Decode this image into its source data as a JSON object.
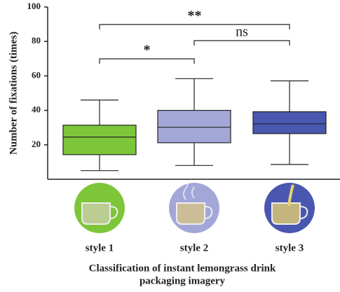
{
  "chart_data": {
    "type": "box",
    "ylabel": "Number of fixations (times)",
    "xlabel": [
      "Classification of instant lemongrass drink",
      "packaging imagery"
    ],
    "categories": [
      "style 1",
      "style 2",
      "style 3"
    ],
    "colors": [
      "#7dc63a",
      "#a3a7d8",
      "#4a57b0"
    ],
    "min": [
      5,
      8,
      8.6
    ],
    "q1": [
      14.3,
      21.2,
      26.5
    ],
    "median": [
      24.5,
      30.2,
      32.2
    ],
    "q3": [
      31.4,
      40,
      39.2
    ],
    "max": [
      46,
      58.4,
      57.1
    ],
    "ylim": [
      0,
      100
    ],
    "yticks": [
      20,
      40,
      60,
      80,
      100
    ],
    "annotations": [
      {
        "text": "*",
        "from": 0,
        "to": 1
      },
      {
        "text": "**",
        "from": 0,
        "to": 2
      },
      {
        "text": "ns",
        "from": 1,
        "to": 2
      }
    ]
  }
}
